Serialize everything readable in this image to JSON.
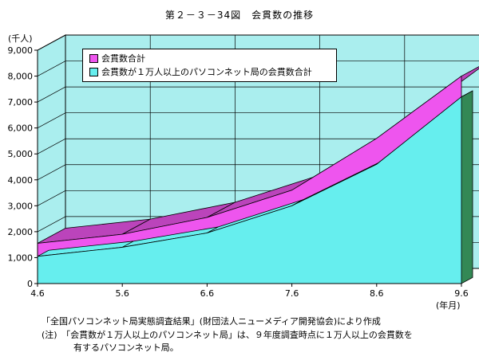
{
  "chart_data": {
    "type": "area",
    "title": "第２－３－34図　会貫数の推移",
    "ylabel": "(千人)",
    "xlabel": "(年月)",
    "categories": [
      "4.6",
      "5.6",
      "6.6",
      "7.6",
      "8.6",
      "9.6"
    ],
    "y_ticks": [
      "0",
      "1,000",
      "2,000",
      "3,000",
      "4,000",
      "5,000",
      "6,000",
      "7,000",
      "8,000",
      "9,000"
    ],
    "ylim": [
      0,
      9000
    ],
    "grid": true,
    "legend_position": "top-left",
    "series": [
      {
        "name": "会貫数合計",
        "values": [
          1550,
          1900,
          2550,
          3600,
          5600,
          8000
        ]
      },
      {
        "name": "会貫数が１万人以上のパソコンネット局の会貫数合計",
        "values": [
          1050,
          1400,
          1950,
          3000,
          4600,
          7200
        ]
      }
    ],
    "colors": {
      "total": "#ee55ee",
      "total_top": "#bb44bb",
      "sub": "#66eeee",
      "sub_side": "#338855",
      "wall": "#aaeeee"
    }
  },
  "footnotes": {
    "source": "「全国パソコンネット局実態調査結果」(財団法人ニューメディア開発協会)により作成",
    "note_line1": "(注)　「会貫数が１万人以上のパソコンネット局」は、９年度調査時点に１万人以上の会貫数を",
    "note_line2": "有するパソコンネット局。"
  }
}
